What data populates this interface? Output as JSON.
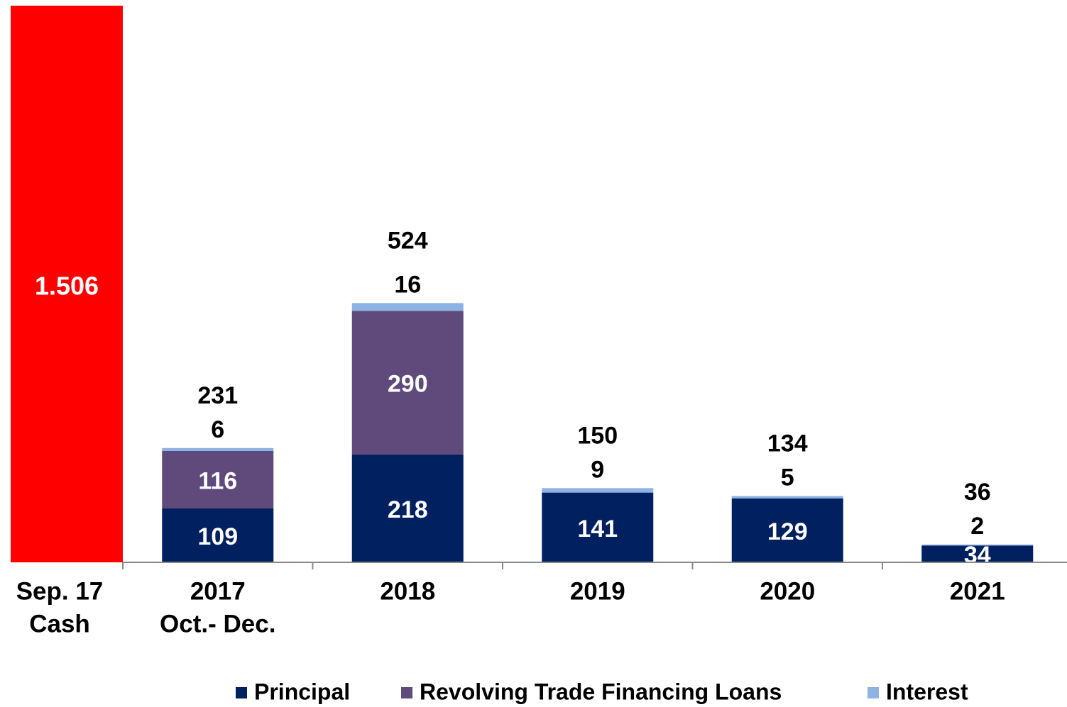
{
  "chart_data": {
    "type": "stacked_bar",
    "categories": [
      [
        "Sep. 17",
        "Cash"
      ],
      [
        "2017",
        "Oct.- Dec."
      ],
      [
        "2018"
      ],
      [
        "2019"
      ],
      [
        "2020"
      ],
      [
        "2021"
      ]
    ],
    "cash": {
      "value": 1506,
      "value_label": "1.506",
      "color": "#ff0000"
    },
    "series": [
      {
        "name": "Principal",
        "color": "#002060",
        "values": [
          null,
          109,
          218,
          141,
          129,
          34
        ]
      },
      {
        "name": "Revolving Trade Financing Loans",
        "color": "#604a7b",
        "values": [
          null,
          116,
          290,
          null,
          null,
          null
        ]
      },
      {
        "name": "Interest",
        "color": "#8db3e2",
        "values": [
          null,
          6,
          16,
          9,
          5,
          2
        ]
      }
    ],
    "totals": [
      null,
      231,
      524,
      150,
      134,
      36
    ],
    "ylim": [
      0,
      1125
    ]
  }
}
